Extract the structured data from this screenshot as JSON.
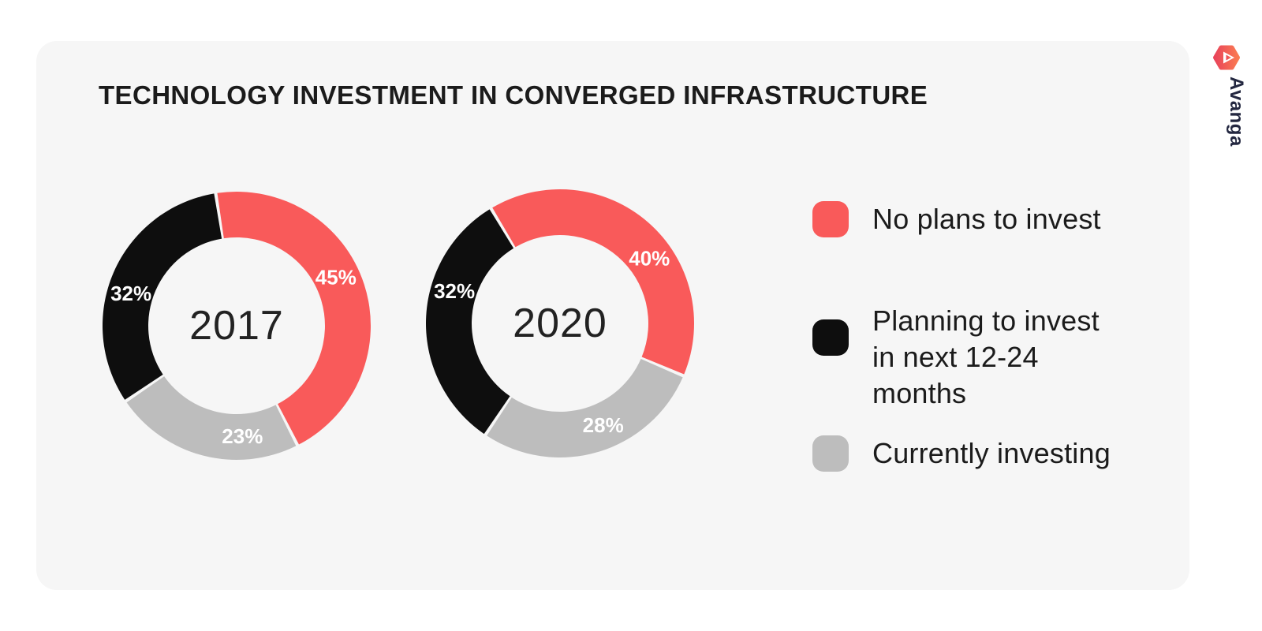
{
  "page": {
    "background": "#ffffff",
    "card_background": "#f6f6f6"
  },
  "brand": {
    "name": "Avanga",
    "logo_gradient": [
      "#e9455a",
      "#fa7a52"
    ]
  },
  "chart_data": {
    "type": "pie",
    "subtype": "donut-pair",
    "title": "TECHNOLOGY INVESTMENT IN CONVERGED INFRASTRUCTURE",
    "legend_position": "right",
    "categories": [
      "No plans to invest",
      "Planning to invest in next 12-24 months",
      "Currently investing"
    ],
    "colors": {
      "no_plans": "#f95a5a",
      "planning": "#0e0e0e",
      "currently": "#bdbdbd"
    },
    "geometry": {
      "outer_radius": 170,
      "inner_radius": 112,
      "label_radius": 140,
      "pad_angle": 0.7
    },
    "donuts": [
      {
        "center_label": "2017",
        "start_angle": -9,
        "slices": [
          {
            "category": "No plans to invest",
            "value": 45,
            "label": "45%",
            "color": "#f95a5a",
            "label_angle": 64
          },
          {
            "category": "Currently investing",
            "value": 23,
            "label": "23%",
            "color": "#bdbdbd",
            "label_angle": 177
          },
          {
            "category": "Planning to invest in next 12-24 months",
            "value": 32,
            "label": "32%",
            "color": "#0e0e0e",
            "label_angle": 287
          }
        ]
      },
      {
        "center_label": "2020",
        "start_angle": -31,
        "slices": [
          {
            "category": "No plans to invest",
            "value": 40,
            "label": "40%",
            "color": "#f95a5a",
            "label_angle": 54
          },
          {
            "category": "Currently investing",
            "value": 28,
            "label": "28%",
            "color": "#bdbdbd",
            "label_angle": 157
          },
          {
            "category": "Planning to invest in next 12-24 months",
            "value": 32,
            "label": "32%",
            "color": "#0e0e0e",
            "label_angle": 287
          }
        ]
      }
    ]
  },
  "legend": {
    "items": [
      {
        "label": "No plans to invest",
        "color": "#f95a5a"
      },
      {
        "label": "Planning to invest in next 12-24 months",
        "color": "#0e0e0e"
      },
      {
        "label": "Currently investing",
        "color": "#bdbdbd"
      }
    ]
  }
}
